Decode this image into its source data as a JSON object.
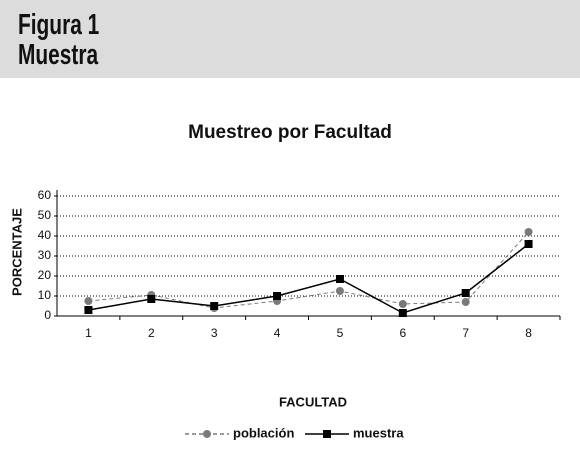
{
  "header": {
    "figure": "Figura 1",
    "subtitle": "Muestra"
  },
  "chart_data": {
    "type": "line",
    "title": "Muestreo por Facultad",
    "x_label": "FACULTAD",
    "y_label": "PORCENTAJE",
    "categories": [
      "1",
      "2",
      "3",
      "4",
      "5",
      "6",
      "7",
      "8"
    ],
    "series": [
      {
        "name": "población",
        "color": "#7a7a7a",
        "marker": "circle",
        "linestyle": "dashed",
        "values": [
          7.5,
          10.5,
          4,
          7.5,
          12.5,
          6,
          7,
          42
        ]
      },
      {
        "name": "muestra",
        "color": "#000000",
        "marker": "square",
        "linestyle": "solid",
        "values": [
          3,
          8.5,
          5,
          10,
          18.5,
          1.5,
          11.5,
          36
        ]
      }
    ],
    "ylim": [
      0,
      60
    ],
    "yticks": [
      0,
      10,
      20,
      30,
      40,
      50,
      60
    ],
    "grid": true
  }
}
